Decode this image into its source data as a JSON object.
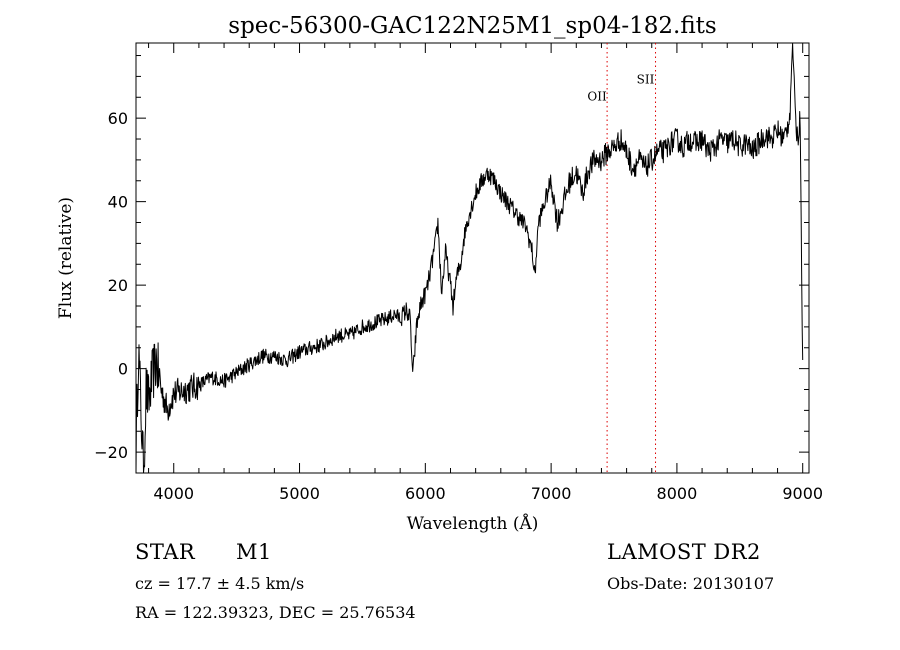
{
  "chart_data": {
    "type": "line",
    "title": "spec-56300-GAC122N25M1_sp04-182.fits",
    "xlabel": "Wavelength (Å)",
    "ylabel": "Flux (relative)",
    "xlim": [
      3700,
      9050
    ],
    "ylim": [
      -25,
      78
    ],
    "x_ticks": [
      4000,
      5000,
      6000,
      7000,
      8000,
      9000
    ],
    "x_tick_labels": [
      "4000",
      "5000",
      "6000",
      "7000",
      "8000",
      "9000"
    ],
    "y_ticks": [
      -20,
      0,
      20,
      40,
      60
    ],
    "y_tick_labels": [
      "−20",
      "0",
      "20",
      "40",
      "60"
    ],
    "grid": false,
    "series": [
      {
        "x": [
          3700,
          3720,
          3740,
          3760,
          3780,
          3800,
          3830,
          3860,
          3900,
          3950,
          4000,
          4100,
          4200,
          4300,
          4400,
          4500,
          4600,
          4700,
          4800,
          4900,
          5000,
          5100,
          5200,
          5300,
          5400,
          5500,
          5600,
          5700,
          5760,
          5800,
          5850,
          5880,
          5900,
          5930,
          5960,
          6000,
          6020,
          6050,
          6080,
          6100,
          6130,
          6160,
          6200,
          6220,
          6250,
          6280,
          6300,
          6330,
          6360,
          6400,
          6450,
          6500,
          6550,
          6600,
          6650,
          6700,
          6750,
          6800,
          6850,
          6870,
          6900,
          6950,
          7000,
          7050,
          7100,
          7150,
          7200,
          7250,
          7300,
          7350,
          7400,
          7450,
          7500,
          7550,
          7600,
          7650,
          7700,
          7750,
          7800,
          7850,
          7900,
          7950,
          8000,
          8050,
          8100,
          8150,
          8200,
          8250,
          8300,
          8350,
          8400,
          8450,
          8500,
          8550,
          8600,
          8650,
          8700,
          8750,
          8800,
          8850,
          8880,
          8900,
          8920,
          8940,
          8960,
          8980,
          9000
        ],
        "y": [
          -20,
          5,
          -10,
          -25,
          -5,
          -8,
          -2,
          2,
          -5,
          -10,
          -6,
          -5,
          -4,
          -2,
          -3,
          -1,
          1,
          3,
          3,
          2,
          4,
          5,
          6,
          8,
          8,
          10,
          11,
          12,
          13,
          12,
          14,
          12,
          -2,
          10,
          15,
          18,
          20,
          25,
          30,
          35,
          18,
          28,
          20,
          15,
          22,
          25,
          30,
          35,
          38,
          42,
          45,
          47,
          45,
          42,
          40,
          38,
          36,
          34,
          28,
          22,
          35,
          40,
          45,
          35,
          40,
          45,
          47,
          42,
          48,
          50,
          50,
          52,
          53,
          55,
          52,
          48,
          50,
          48,
          50,
          52,
          52,
          54,
          55,
          53,
          55,
          54,
          55,
          52,
          53,
          55,
          54,
          55,
          53,
          54,
          52,
          54,
          56,
          55,
          57,
          55,
          58,
          62,
          80,
          60,
          55,
          60,
          0
        ]
      }
    ],
    "annotations": [
      {
        "label": "OII",
        "x": 7445,
        "label_y": 65
      },
      {
        "label": "SII",
        "x": 7830,
        "label_y": 69
      }
    ],
    "annotation_color": "#dd0000"
  },
  "info": {
    "classification": "STAR",
    "subclass": "M1",
    "survey": "LAMOST DR2",
    "redshift": "cz = 17.7 ± 4.5 km/s",
    "obs_date": "Obs-Date: 20130107",
    "coords": "RA = 122.39323, DEC =  25.76534"
  }
}
